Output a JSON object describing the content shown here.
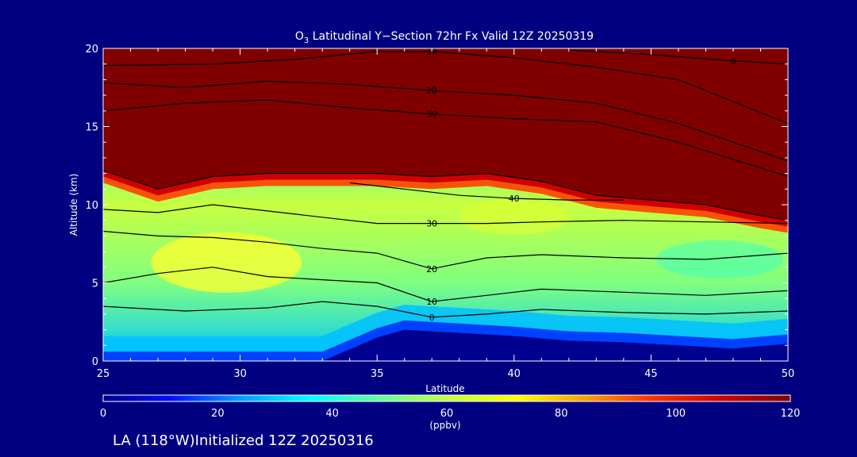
{
  "chart_data": {
    "type": "heatmap",
    "title_prefix": "O",
    "title_subscript": "3",
    "title_rest": " Latitudinal Y−Section 72hr  Fx Valid 12Z 20250319",
    "xlabel": "Latitude",
    "ylabel": "Altitude (km)",
    "xlim": [
      25,
      50
    ],
    "ylim": [
      0,
      20
    ],
    "x_ticks": [
      "25",
      "30",
      "35",
      "40",
      "45",
      "50"
    ],
    "y_ticks": [
      "0",
      "5",
      "10",
      "15",
      "20"
    ],
    "colorbar": {
      "ticks": [
        "0",
        "20",
        "40",
        "60",
        "80",
        "100",
        "120"
      ],
      "min": 0,
      "max": 120,
      "unit": "(ppbv)",
      "colors": [
        "#000090",
        "#0010ff",
        "#00a0ff",
        "#00ffff",
        "#60ffa0",
        "#c0ff40",
        "#ffff00",
        "#ffa000",
        "#ff3000",
        "#d00000",
        "#800000"
      ]
    },
    "contour_labels": [
      "0",
      "10",
      "20",
      "30",
      "40"
    ],
    "tropopause_km": [
      [
        25,
        12.2
      ],
      [
        27,
        11.0
      ],
      [
        29,
        11.8
      ],
      [
        31,
        12.0
      ],
      [
        33,
        12.0
      ],
      [
        35,
        12.0
      ],
      [
        37,
        11.8
      ],
      [
        39,
        12.0
      ],
      [
        41,
        11.5
      ],
      [
        43,
        10.6
      ],
      [
        45,
        10.3
      ],
      [
        47,
        10.0
      ],
      [
        49,
        9.3
      ],
      [
        50,
        9.0
      ]
    ],
    "surface_km": [
      [
        25,
        0
      ],
      [
        30,
        0
      ],
      [
        33,
        0
      ],
      [
        35,
        1.5
      ],
      [
        36,
        2.0
      ],
      [
        38,
        1.8
      ],
      [
        40,
        1.6
      ],
      [
        42,
        1.3
      ],
      [
        44,
        1.2
      ],
      [
        46,
        1.0
      ],
      [
        48,
        0.8
      ],
      [
        50,
        1.1
      ]
    ],
    "contour_lines": [
      {
        "label": "0",
        "points": [
          [
            25,
            3.5
          ],
          [
            28,
            3.2
          ],
          [
            31,
            3.4
          ],
          [
            33,
            3.8
          ],
          [
            35,
            3.5
          ],
          [
            37,
            2.8
          ],
          [
            39,
            3.0
          ],
          [
            41,
            3.3
          ],
          [
            44,
            3.1
          ],
          [
            47,
            3.0
          ],
          [
            50,
            3.2
          ]
        ]
      },
      {
        "label": "10",
        "points": [
          [
            25,
            5.0
          ],
          [
            27,
            5.6
          ],
          [
            29,
            6.0
          ],
          [
            31,
            5.4
          ],
          [
            33,
            5.2
          ],
          [
            35,
            5.0
          ],
          [
            37,
            3.8
          ],
          [
            39,
            4.2
          ],
          [
            41,
            4.6
          ],
          [
            44,
            4.4
          ],
          [
            47,
            4.2
          ],
          [
            50,
            4.5
          ]
        ]
      },
      {
        "label": "20",
        "points": [
          [
            25,
            8.3
          ],
          [
            27,
            8.0
          ],
          [
            29,
            7.9
          ],
          [
            31,
            7.6
          ],
          [
            33,
            7.2
          ],
          [
            35,
            6.9
          ],
          [
            37,
            5.9
          ],
          [
            39,
            6.6
          ],
          [
            41,
            6.8
          ],
          [
            44,
            6.6
          ],
          [
            47,
            6.5
          ],
          [
            50,
            6.9
          ]
        ]
      },
      {
        "label": "30",
        "points": [
          [
            25,
            9.7
          ],
          [
            27,
            9.5
          ],
          [
            29,
            10.0
          ],
          [
            31,
            9.6
          ],
          [
            33,
            9.2
          ],
          [
            35,
            8.8
          ],
          [
            37,
            8.8
          ],
          [
            39,
            8.8
          ],
          [
            41,
            8.9
          ],
          [
            44,
            9.0
          ],
          [
            47,
            8.9
          ],
          [
            50,
            8.8
          ]
        ]
      },
      {
        "label": "40",
        "points": [
          [
            34,
            11.4
          ],
          [
            36,
            11.0
          ],
          [
            38,
            10.6
          ],
          [
            40,
            10.4
          ],
          [
            42,
            10.3
          ],
          [
            44,
            10.3
          ]
        ]
      },
      {
        "label": "30",
        "points": [
          [
            25,
            16.0
          ],
          [
            28,
            16.5
          ],
          [
            31,
            16.7
          ],
          [
            34,
            16.2
          ],
          [
            37,
            15.8
          ],
          [
            40,
            15.5
          ],
          [
            43,
            15.3
          ],
          [
            46,
            14.0
          ],
          [
            50,
            11.8
          ]
        ]
      },
      {
        "label": "20",
        "points": [
          [
            25,
            17.8
          ],
          [
            28,
            17.5
          ],
          [
            31,
            17.9
          ],
          [
            34,
            17.7
          ],
          [
            37,
            17.3
          ],
          [
            40,
            17.0
          ],
          [
            43,
            16.5
          ],
          [
            46,
            15.2
          ],
          [
            50,
            12.8
          ]
        ]
      },
      {
        "label": "10",
        "points": [
          [
            25,
            18.9
          ],
          [
            29,
            19.0
          ],
          [
            32,
            19.3
          ],
          [
            35,
            19.8
          ],
          [
            37,
            19.8
          ],
          [
            40,
            19.4
          ],
          [
            43,
            18.8
          ],
          [
            46,
            18.0
          ],
          [
            50,
            15.2
          ]
        ]
      },
      {
        "label": "0",
        "points": [
          [
            42,
            19.9
          ],
          [
            45,
            19.6
          ],
          [
            48,
            19.2
          ],
          [
            50,
            19.0
          ]
        ]
      }
    ]
  },
  "footer": {
    "text": "LA (118°W)Initialized 12Z 20250316"
  }
}
